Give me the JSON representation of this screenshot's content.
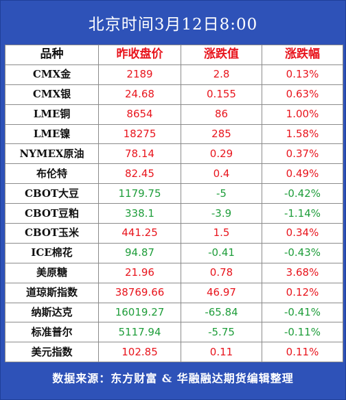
{
  "title": "北京时间3月12日8:00",
  "headers": {
    "name": "品种",
    "prev_close": "昨收盘价",
    "change": "涨跌值",
    "change_pct": "涨跌幅"
  },
  "rows": [
    {
      "name": "CMX金",
      "prev_close": "2189",
      "change": "2.8",
      "change_pct": "0.13%",
      "direction": "up"
    },
    {
      "name": "CMX银",
      "prev_close": "24.68",
      "change": "0.155",
      "change_pct": "0.63%",
      "direction": "up"
    },
    {
      "name": "LME铜",
      "prev_close": "8654",
      "change": "86",
      "change_pct": "1.00%",
      "direction": "up"
    },
    {
      "name": "LME镍",
      "prev_close": "18275",
      "change": "285",
      "change_pct": "1.58%",
      "direction": "up"
    },
    {
      "name": "NYMEX原油",
      "prev_close": "78.14",
      "change": "0.29",
      "change_pct": "0.37%",
      "direction": "up"
    },
    {
      "name": "布伦特",
      "prev_close": "82.45",
      "change": "0.4",
      "change_pct": "0.49%",
      "direction": "up"
    },
    {
      "name": "CBOT大豆",
      "prev_close": "1179.75",
      "change": "-5",
      "change_pct": "-0.42%",
      "direction": "down"
    },
    {
      "name": "CBOT豆粕",
      "prev_close": "338.1",
      "change": "-3.9",
      "change_pct": "-1.14%",
      "direction": "down"
    },
    {
      "name": "CBOT玉米",
      "prev_close": "441.25",
      "change": "1.5",
      "change_pct": "0.34%",
      "direction": "up"
    },
    {
      "name": "ICE棉花",
      "prev_close": "94.87",
      "change": "-0.41",
      "change_pct": "-0.43%",
      "direction": "down"
    },
    {
      "name": "美原糖",
      "prev_close": "21.96",
      "change": "0.78",
      "change_pct": "3.68%",
      "direction": "up"
    },
    {
      "name": "道琼斯指数",
      "prev_close": "38769.66",
      "change": "46.97",
      "change_pct": "0.12%",
      "direction": "up"
    },
    {
      "name": "纳斯达克",
      "prev_close": "16019.27",
      "change": "-65.84",
      "change_pct": "-0.41%",
      "direction": "down"
    },
    {
      "name": "标准普尔",
      "prev_close": "5117.94",
      "change": "-5.75",
      "change_pct": "-0.11%",
      "direction": "down"
    },
    {
      "name": "美元指数",
      "prev_close": "102.85",
      "change": "0.11",
      "change_pct": "0.11%",
      "direction": "up"
    }
  ],
  "footer": "数据来源：东方财富 & 华融融达期货编辑整理",
  "colors": {
    "background": "#2e52b8",
    "up": "#e8141c",
    "down": "#1e9d3a"
  }
}
